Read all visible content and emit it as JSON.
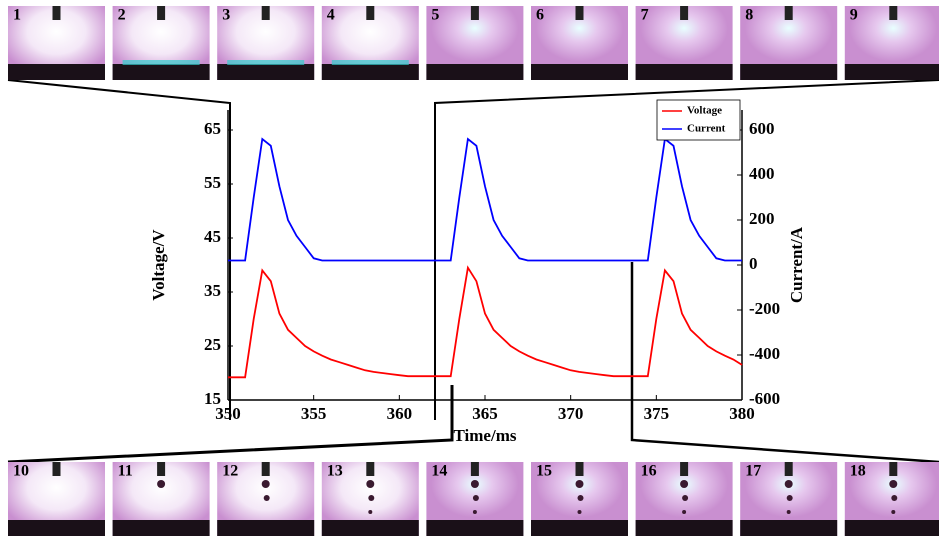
{
  "chart_data": {
    "type": "line",
    "xlabel": "Time/ms",
    "ylabel": "Voltage/V",
    "y2label": "Current/A",
    "frames_top": [
      "1",
      "2",
      "3",
      "4",
      "5",
      "6",
      "7",
      "8",
      "9"
    ],
    "frames_bottom": [
      "10",
      "11",
      "12",
      "13",
      "14",
      "15",
      "16",
      "17",
      "18"
    ],
    "xlim": [
      350,
      380
    ],
    "xticks": [
      350,
      355,
      360,
      365,
      370,
      375,
      380
    ],
    "ylim": [
      15,
      65
    ],
    "yticks": [
      15,
      25,
      35,
      45,
      55,
      65
    ],
    "y2lim": [
      -600,
      600
    ],
    "y2ticks": [
      -600,
      -400,
      -200,
      0,
      200,
      400,
      600
    ],
    "legend": "upper right",
    "x": [
      350,
      350.5,
      351,
      351.5,
      352,
      352.5,
      353,
      353.5,
      354,
      354.5,
      355,
      355.5,
      356,
      356.5,
      357,
      357.5,
      358,
      358.5,
      359,
      359.5,
      360,
      360.5,
      361,
      361.5,
      362,
      362.5,
      363,
      363.5,
      364,
      364.5,
      365,
      365.5,
      366,
      366.5,
      367,
      367.5,
      368,
      368.5,
      369,
      369.5,
      370,
      370.5,
      371,
      371.5,
      372,
      372.5,
      373,
      373.5,
      374,
      374.5,
      375,
      375.5,
      376,
      376.5,
      377,
      377.5,
      378,
      378.5,
      379,
      379.5,
      380
    ],
    "series": [
      {
        "name": "Voltage",
        "color": "#ff0000",
        "values": [
          19.2,
          19.2,
          19.2,
          30,
          39,
          37,
          31,
          28,
          26.5,
          25,
          24,
          23.2,
          22.5,
          22,
          21.5,
          21,
          20.5,
          20.2,
          20,
          19.8,
          19.6,
          19.4,
          19.4,
          19.4,
          19.4,
          19.4,
          19.4,
          30,
          39.5,
          37,
          31,
          28,
          26.5,
          25,
          24,
          23.2,
          22.5,
          22,
          21.5,
          21,
          20.5,
          20.2,
          20,
          19.8,
          19.6,
          19.4,
          19.4,
          19.4,
          19.4,
          19.4,
          30,
          39,
          37,
          31,
          28,
          26.5,
          25,
          24,
          23.2,
          22.5,
          21.5
        ]
      },
      {
        "name": "Current",
        "color": "#0000ff",
        "axis": "y2",
        "values": [
          20,
          20,
          20,
          300,
          560,
          530,
          350,
          200,
          130,
          80,
          30,
          20,
          20,
          20,
          20,
          20,
          20,
          20,
          20,
          20,
          20,
          20,
          20,
          20,
          20,
          20,
          20,
          300,
          560,
          530,
          350,
          200,
          130,
          80,
          30,
          20,
          20,
          20,
          20,
          20,
          20,
          20,
          20,
          20,
          20,
          20,
          20,
          20,
          20,
          20,
          300,
          560,
          530,
          350,
          200,
          130,
          80,
          30,
          20,
          20,
          20
        ]
      }
    ]
  }
}
